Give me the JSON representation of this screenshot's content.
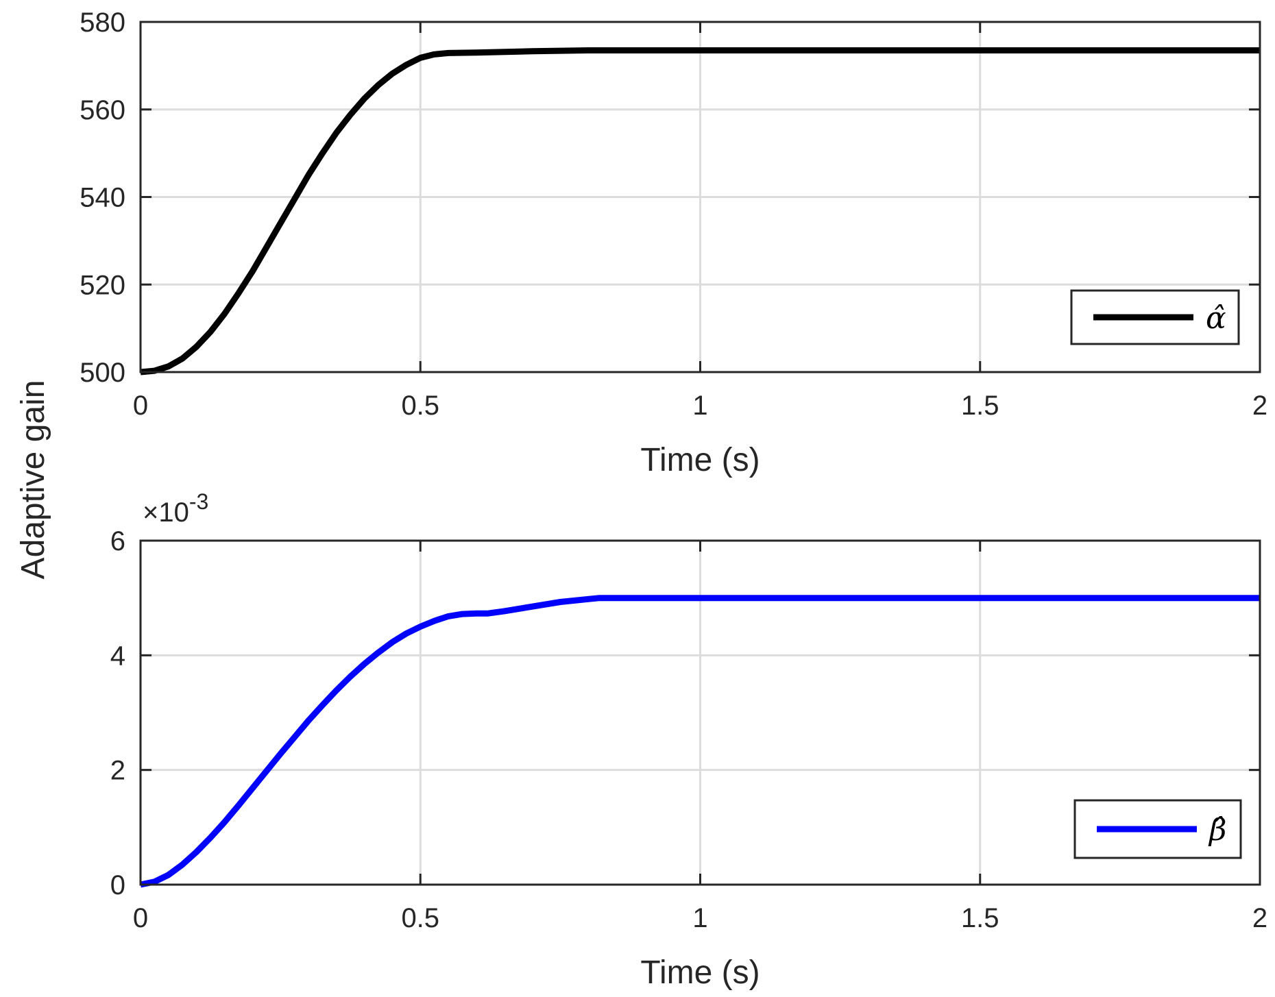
{
  "figure": {
    "shared_ylabel": "Adaptive gain"
  },
  "chart_data": [
    {
      "type": "line",
      "xlabel": "Time (s)",
      "ylabel": "",
      "xlim": [
        0,
        2
      ],
      "ylim": [
        500,
        580
      ],
      "xticks": [
        0,
        0.5,
        1,
        1.5,
        2
      ],
      "xtick_labels": [
        "0",
        "0.5",
        "1",
        "1.5",
        "2"
      ],
      "yticks": [
        500,
        520,
        540,
        560,
        580
      ],
      "ytick_labels": [
        "500",
        "520",
        "540",
        "560",
        "580"
      ],
      "grid": true,
      "legend_position": "bottom-right",
      "series": [
        {
          "name": "α̂",
          "color": "#000000",
          "x": [
            0,
            0.025,
            0.05,
            0.075,
            0.1,
            0.125,
            0.15,
            0.175,
            0.2,
            0.225,
            0.25,
            0.275,
            0.3,
            0.325,
            0.35,
            0.375,
            0.4,
            0.425,
            0.45,
            0.475,
            0.5,
            0.525,
            0.55,
            0.6,
            0.7,
            0.8,
            1.0,
            1.5,
            2.0
          ],
          "y": [
            500.0,
            500.3,
            501.3,
            503.1,
            505.8,
            509.2,
            513.3,
            518.0,
            523.0,
            528.5,
            534.0,
            539.5,
            545.0,
            550.0,
            554.7,
            558.8,
            562.5,
            565.6,
            568.2,
            570.2,
            571.8,
            572.6,
            572.9,
            573.0,
            573.3,
            573.5,
            573.5,
            573.5,
            573.5
          ]
        }
      ]
    },
    {
      "type": "line",
      "xlabel": "Time (s)",
      "ylabel": "",
      "exponent_label": "×10",
      "exponent_power": "-3",
      "xlim": [
        0,
        2
      ],
      "ylim": [
        0,
        6
      ],
      "xticks": [
        0,
        0.5,
        1,
        1.5,
        2
      ],
      "xtick_labels": [
        "0",
        "0.5",
        "1",
        "1.5",
        "2"
      ],
      "yticks": [
        0,
        2,
        4,
        6
      ],
      "ytick_labels": [
        "0",
        "2",
        "4",
        "6"
      ],
      "grid": true,
      "legend_position": "bottom-right",
      "series": [
        {
          "name": "β̂",
          "color": "#0000ff",
          "x": [
            0,
            0.025,
            0.05,
            0.075,
            0.1,
            0.125,
            0.15,
            0.175,
            0.2,
            0.225,
            0.25,
            0.275,
            0.3,
            0.325,
            0.35,
            0.375,
            0.4,
            0.425,
            0.45,
            0.475,
            0.5,
            0.525,
            0.55,
            0.575,
            0.6,
            0.62,
            0.65,
            0.7,
            0.75,
            0.8,
            0.82,
            1.0,
            1.5,
            2.0
          ],
          "y": [
            0.0,
            0.05,
            0.17,
            0.35,
            0.57,
            0.82,
            1.09,
            1.38,
            1.68,
            1.98,
            2.28,
            2.57,
            2.86,
            3.13,
            3.39,
            3.63,
            3.85,
            4.05,
            4.23,
            4.38,
            4.5,
            4.6,
            4.68,
            4.72,
            4.73,
            4.73,
            4.77,
            4.85,
            4.93,
            4.98,
            5.0,
            5.0,
            5.0,
            5.0
          ]
        }
      ]
    }
  ]
}
